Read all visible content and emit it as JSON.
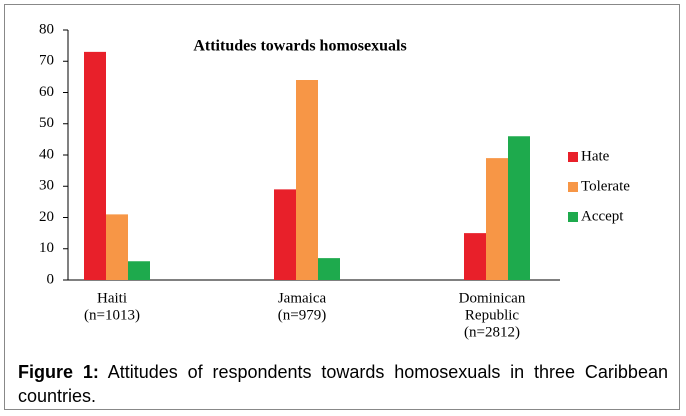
{
  "chart_data": {
    "type": "bar",
    "title": "Attitudes towards homosexuals",
    "categories": [
      [
        "Haiti",
        "(n=1013)"
      ],
      [
        "Jamaica",
        "(n=979)"
      ],
      [
        "Dominican",
        "Republic",
        "(n=2812)"
      ]
    ],
    "series": [
      {
        "name": "Hate",
        "color": "#e8202a",
        "values": [
          73,
          29,
          15
        ]
      },
      {
        "name": "Tolerate",
        "color": "#f79646",
        "values": [
          21,
          64,
          39
        ]
      },
      {
        "name": "Accept",
        "color": "#1eaa4d",
        "values": [
          6,
          7,
          46
        ]
      }
    ],
    "ylim": [
      0,
      80
    ],
    "yticks": [
      0,
      10,
      20,
      30,
      40,
      50,
      60,
      70,
      80
    ],
    "grid": false,
    "legend": "right"
  },
  "caption": {
    "label": "Figure 1:",
    "text": "Attitudes of respondents towards homosexuals in three Caribbean countries."
  }
}
